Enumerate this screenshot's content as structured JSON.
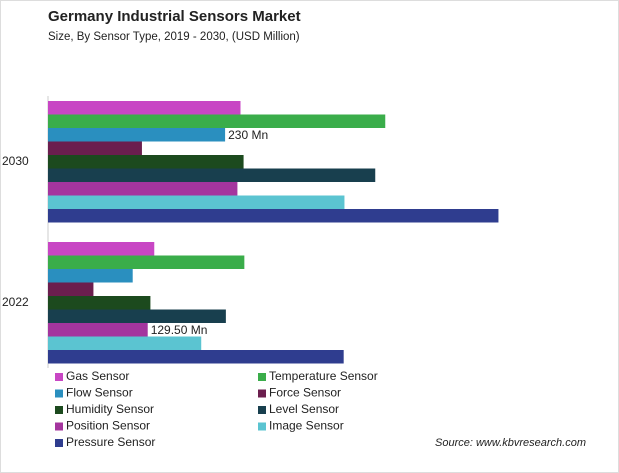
{
  "chart_data": {
    "type": "bar",
    "orientation": "horizontal",
    "title": "Germany Industrial Sensors Market",
    "subtitle": "Size, By Sensor Type, 2019 - 2030, (USD Million)",
    "source": "Source: www.kbvresearch.com",
    "categories": [
      "2030",
      "2022"
    ],
    "xlim": [
      0,
      600
    ],
    "series": [
      {
        "name": "Gas Sensor",
        "color": "#c846c4",
        "values": [
          250,
          138
        ]
      },
      {
        "name": "Temperature Sensor",
        "color": "#3aad4a",
        "values": [
          438,
          255
        ]
      },
      {
        "name": "Flow Sensor",
        "color": "#2a8fbf",
        "values": [
          230,
          110
        ],
        "value_labels": [
          "230 Mn",
          null
        ]
      },
      {
        "name": "Force Sensor",
        "color": "#6b1e4e",
        "values": [
          122,
          59
        ]
      },
      {
        "name": "Humidity Sensor",
        "color": "#1c4a1e",
        "values": [
          254,
          133
        ]
      },
      {
        "name": "Level Sensor",
        "color": "#183f4e",
        "values": [
          425,
          231
        ]
      },
      {
        "name": "Position Sensor",
        "color": "#a4359e",
        "values": [
          246,
          129.5
        ],
        "value_labels": [
          null,
          "129.50 Mn"
        ]
      },
      {
        "name": "Image Sensor",
        "color": "#5bc4d1",
        "values": [
          385,
          199
        ]
      },
      {
        "name": "Pressure Sensor",
        "color": "#2f3d8f",
        "values": [
          585,
          384
        ]
      }
    ]
  }
}
